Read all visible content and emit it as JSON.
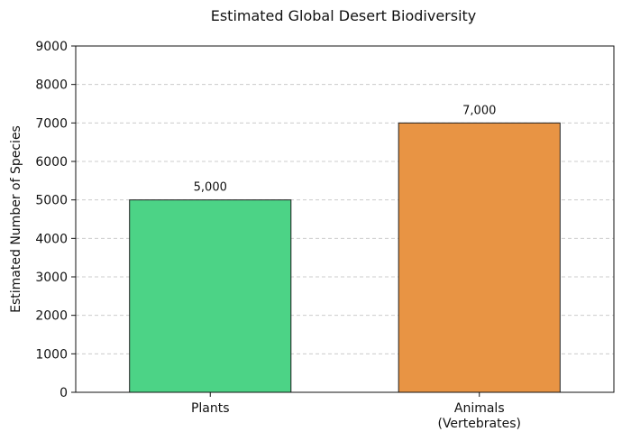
{
  "chart_data": {
    "type": "bar",
    "title": "Estimated Global Desert Biodiversity",
    "xlabel": "",
    "ylabel": "Estimated Number of Species",
    "categories": [
      [
        "Plants"
      ],
      [
        "Animals",
        "(Vertebrates)"
      ]
    ],
    "values": [
      5000,
      7000
    ],
    "value_labels": [
      "5,000",
      "7,000"
    ],
    "colors": [
      "#4cd386",
      "#e89444"
    ],
    "ylim": [
      0,
      9000
    ],
    "yticks": [
      0,
      1000,
      2000,
      3000,
      4000,
      5000,
      6000,
      7000,
      8000,
      9000
    ],
    "grid": "y-dashed",
    "legend": "none"
  }
}
